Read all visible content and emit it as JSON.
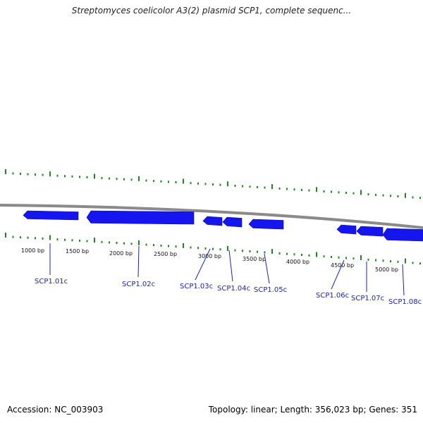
{
  "title": "Streptomyces coelicolor A3(2) plasmid SCP1, complete sequenc...",
  "footer": {
    "accession_prefix": "Accession: ",
    "accession": "NC_003903",
    "topology_label": "Topology: ",
    "topology": "linear",
    "length_label": "Length: ",
    "length": "356,023 bp",
    "genes_label": "Genes: ",
    "genes": "351"
  },
  "colors": {
    "backbone": "#8a8a8a",
    "gene": "#1515f0",
    "tick": "#1f8a1f",
    "gene_label": "#1a22c8"
  },
  "scale_labels": [
    "1000 bp",
    "1500 bp",
    "2000 bp",
    "2500 bp",
    "3000 bp",
    "3500 bp",
    "4000 bp",
    "4500 bp",
    "5000 bp"
  ],
  "genes_list": [
    {
      "label": "SCP1.01c",
      "strand": "-"
    },
    {
      "label": "SCP1.02c",
      "strand": "-"
    },
    {
      "label": "SCP1.03c",
      "strand": "-"
    },
    {
      "label": "SCP1.04c",
      "strand": "-"
    },
    {
      "label": "SCP1.05c",
      "strand": "-"
    },
    {
      "label": "SCP1.06c",
      "strand": "-"
    },
    {
      "label": "SCP1.07c",
      "strand": "-"
    },
    {
      "label": "SCP1.08c",
      "strand": "-"
    }
  ]
}
